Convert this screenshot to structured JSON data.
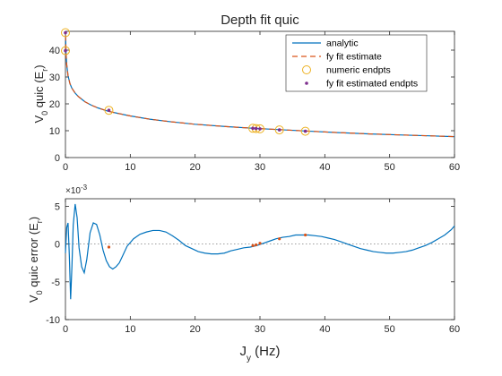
{
  "chart_data": [
    {
      "type": "line",
      "title": "Depth fit quic",
      "ylabel": "V",
      "ylabel_sub": "0",
      "ylabel_rest": " quic (E",
      "ylabel_unit_sub": "r",
      "ylabel_close": ")",
      "xlim": [
        0,
        60
      ],
      "ylim": [
        0,
        47
      ],
      "xticks": [
        0,
        10,
        20,
        30,
        40,
        50,
        60
      ],
      "yticks": [
        0,
        10,
        20,
        30,
        40
      ],
      "legend_position": "top-right",
      "legend": [
        "analytic",
        "fy fit estimate",
        "numeric endpts",
        "fy fit estimated endpts"
      ],
      "series": [
        {
          "name": "analytic",
          "color": "#0072bd",
          "style": "solid",
          "x": [
            0.02,
            0.1,
            0.2,
            0.4,
            0.7,
            1,
            1.5,
            2,
            3,
            4,
            5,
            6.5,
            8,
            10,
            13,
            16,
            20,
            25,
            29,
            33,
            37,
            42,
            47,
            52,
            56,
            60
          ],
          "y": [
            45.5,
            38.5,
            34.5,
            30.5,
            27.5,
            25.8,
            24.0,
            22.7,
            20.8,
            19.5,
            18.5,
            17.3,
            16.5,
            15.5,
            14.3,
            13.4,
            12.4,
            11.5,
            10.9,
            10.4,
            9.9,
            9.3,
            8.8,
            8.4,
            8.1,
            7.8
          ]
        },
        {
          "name": "fy fit estimate",
          "color": "#d95319",
          "style": "dashed",
          "x": [
            0.02,
            0.1,
            0.2,
            0.4,
            0.7,
            1,
            1.5,
            2,
            3,
            4,
            5,
            6.5,
            8,
            10,
            13,
            16,
            20,
            25,
            29,
            33,
            37,
            42,
            47,
            52,
            56,
            60
          ],
          "y": [
            45.5,
            38.5,
            34.5,
            30.5,
            27.5,
            25.8,
            24.0,
            22.7,
            20.8,
            19.5,
            18.5,
            17.3,
            16.5,
            15.5,
            14.3,
            13.4,
            12.4,
            11.5,
            10.9,
            10.4,
            9.9,
            9.3,
            8.8,
            8.4,
            8.1,
            7.8
          ]
        }
      ],
      "numeric_endpts": {
        "color": "#edb120",
        "x": [
          0,
          0,
          6.7,
          28.9,
          29.4,
          30.0,
          33.0,
          37.0
        ],
        "y": [
          46.5,
          39.8,
          17.6,
          10.9,
          10.8,
          10.7,
          10.3,
          9.8
        ]
      },
      "fit_endpts": {
        "color": "#7e2f8e",
        "x": [
          0,
          0,
          6.7,
          28.9,
          29.4,
          30.0,
          33.0,
          37.0
        ],
        "y": [
          46.5,
          39.8,
          17.6,
          10.9,
          10.8,
          10.7,
          10.3,
          9.8
        ]
      }
    },
    {
      "type": "line",
      "ylabel": "V",
      "ylabel_sub": "0",
      "ylabel_rest": " quic error (E",
      "ylabel_unit_sub": "r",
      "ylabel_close": ")",
      "xlabel": "J",
      "xlabel_sub": "y",
      "xlabel_rest": " (Hz)",
      "multiplier_base": "×10",
      "multiplier_exp": "-3",
      "xlim": [
        0,
        60
      ],
      "ylim": [
        -10,
        6
      ],
      "xticks": [
        0,
        10,
        20,
        30,
        40,
        50,
        60
      ],
      "yticks": [
        -10,
        -5,
        0,
        5
      ],
      "zero_line": true,
      "series": [
        {
          "name": "error",
          "color": "#0072bd",
          "style": "solid",
          "x": [
            0,
            0.2,
            0.4,
            0.6,
            0.8,
            1.0,
            1.2,
            1.5,
            1.8,
            2.1,
            2.5,
            2.9,
            3.3,
            3.8,
            4.3,
            4.8,
            5.3,
            5.8,
            6.3,
            6.8,
            7.3,
            7.8,
            8.3,
            8.8,
            9.5,
            10.5,
            11.5,
            12.5,
            13.5,
            14.5,
            15.5,
            16.5,
            17.5,
            18.5,
            19.5,
            20.5,
            21.5,
            22.5,
            23.5,
            24.5,
            25.5,
            26.5,
            27.5,
            28.5,
            29.5,
            30.5,
            31.5,
            32.5,
            33.5,
            34.5,
            35.5,
            36.5,
            37.5,
            38.5,
            39.5,
            40.5,
            41.5,
            42.5,
            43.5,
            44.5,
            45.5,
            46.5,
            47.5,
            48.5,
            49.5,
            50.5,
            51.5,
            52.5,
            53.5,
            54.5,
            55.5,
            56.5,
            57.5,
            58.5,
            59.5,
            60
          ],
          "y": [
            -1.2,
            2.2,
            2.8,
            -1.5,
            -7.3,
            -3.0,
            2.5,
            5.3,
            3.5,
            -0.5,
            -3.0,
            -3.8,
            -2.0,
            1.5,
            2.8,
            2.6,
            1.2,
            -0.8,
            -2.2,
            -3.0,
            -3.3,
            -3.0,
            -2.5,
            -1.6,
            -0.3,
            0.7,
            1.3,
            1.6,
            1.8,
            1.8,
            1.6,
            1.1,
            0.5,
            -0.2,
            -0.6,
            -1.0,
            -1.2,
            -1.3,
            -1.3,
            -1.2,
            -0.9,
            -0.7,
            -0.5,
            -0.4,
            -0.2,
            0.1,
            0.4,
            0.7,
            0.9,
            1.0,
            1.2,
            1.2,
            1.2,
            1.1,
            1.0,
            0.8,
            0.6,
            0.3,
            0.0,
            -0.3,
            -0.6,
            -0.8,
            -1.0,
            -1.1,
            -1.2,
            -1.2,
            -1.1,
            -1.0,
            -0.8,
            -0.5,
            -0.2,
            0.2,
            0.7,
            1.2,
            1.9,
            2.4
          ]
        }
      ],
      "markers": {
        "color": "#d95319",
        "x": [
          6.7,
          28.9,
          29.4,
          30.0,
          33.0,
          37.0
        ],
        "y": [
          -0.4,
          -0.2,
          -0.1,
          0.1,
          0.7,
          1.2
        ]
      }
    }
  ]
}
